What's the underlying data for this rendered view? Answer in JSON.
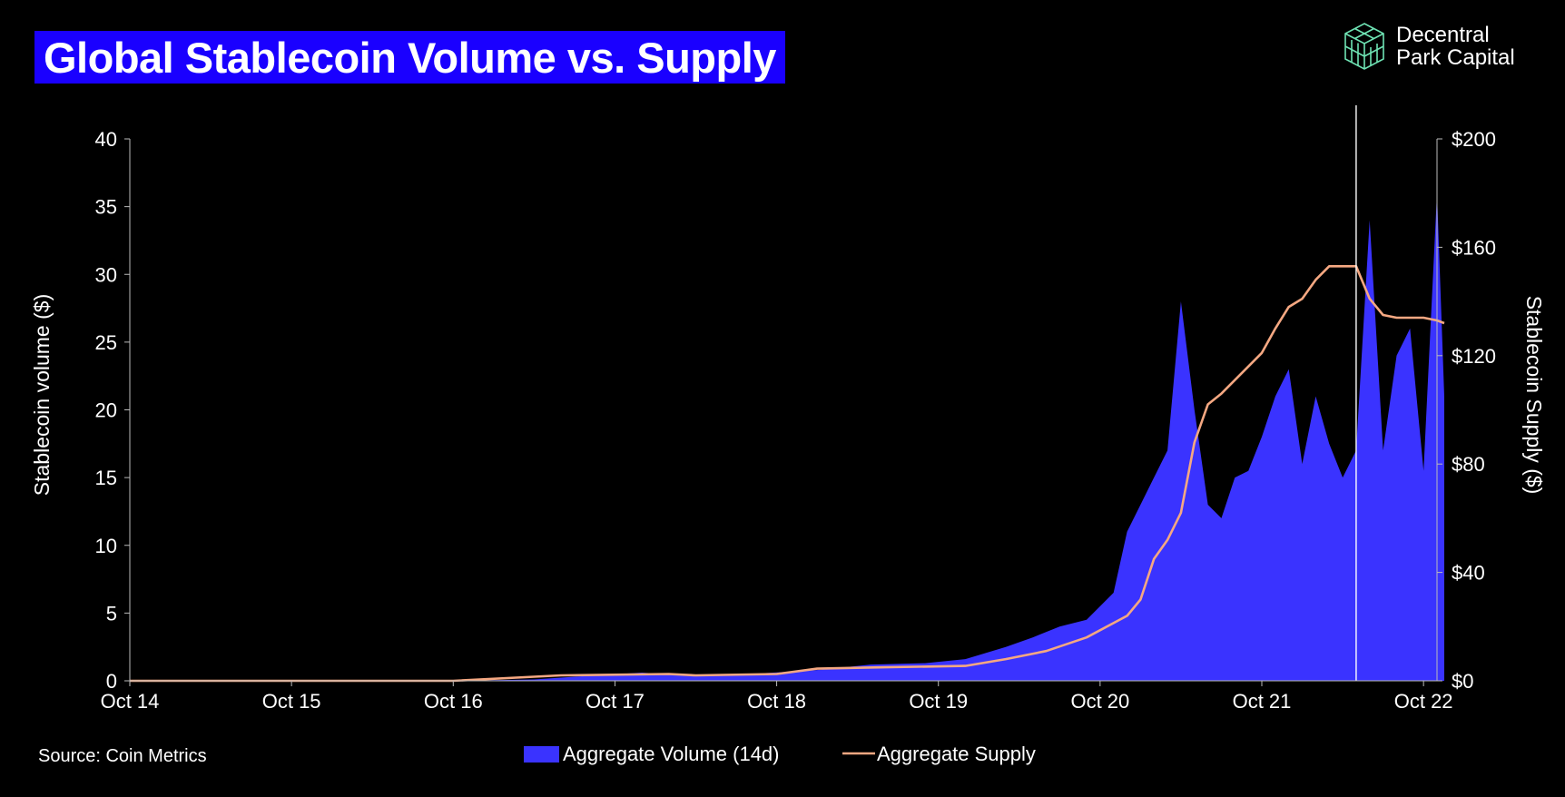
{
  "title": "Global Stablecoin Volume vs. Supply",
  "logo": {
    "icon": "cube-icon",
    "line1": "Decentral",
    "line2": "Park Capital",
    "color": "#6fe3b4"
  },
  "source": "Source: Coin Metrics",
  "chart_data": {
    "type": "area",
    "xlabel": "",
    "ylabel": "Stablecoin volume ($)",
    "y2label": "Stablecoin Supply ($)",
    "x_range": [
      "2014-10",
      "2022-11"
    ],
    "ylim": [
      0,
      40
    ],
    "y2lim": [
      0,
      200
    ],
    "yticks": [
      "0",
      "5",
      "10",
      "15",
      "20",
      "25",
      "30",
      "35",
      "40"
    ],
    "y2ticks": [
      "$0",
      "$40",
      "$80",
      "$120",
      "$160",
      "$200"
    ],
    "xticks": [
      "Oct 14",
      "Oct 15",
      "Oct 16",
      "Oct 17",
      "Oct 18",
      "Oct 19",
      "Oct 20",
      "Oct 21",
      "Oct 22"
    ],
    "grid": false,
    "legend_position": "bottom",
    "marker_line_date": "2022-05",
    "series": [
      {
        "name": "Aggregate Volume (14d)",
        "kind": "area",
        "axis": "left",
        "color": "#3a33ff",
        "points": [
          [
            "2014-10",
            0.0
          ],
          [
            "2015-10",
            0.0
          ],
          [
            "2016-10",
            0.0
          ],
          [
            "2017-04",
            0.1
          ],
          [
            "2017-07",
            0.3
          ],
          [
            "2017-12",
            0.6
          ],
          [
            "2018-03",
            0.4
          ],
          [
            "2018-08",
            0.5
          ],
          [
            "2019-01",
            0.8
          ],
          [
            "2019-05",
            1.2
          ],
          [
            "2019-09",
            1.3
          ],
          [
            "2019-12",
            1.6
          ],
          [
            "2020-03",
            2.5
          ],
          [
            "2020-05",
            3.2
          ],
          [
            "2020-07",
            4.0
          ],
          [
            "2020-09",
            4.5
          ],
          [
            "2020-11",
            6.5
          ],
          [
            "2020-12",
            11.0
          ],
          [
            "2021-01",
            13.0
          ],
          [
            "2021-02",
            15.0
          ],
          [
            "2021-03",
            17.0
          ],
          [
            "2021-04",
            28.0
          ],
          [
            "2021-05",
            20.0
          ],
          [
            "2021-06",
            13.0
          ],
          [
            "2021-07",
            12.0
          ],
          [
            "2021-08",
            15.0
          ],
          [
            "2021-09",
            15.5
          ],
          [
            "2021-10",
            18.0
          ],
          [
            "2021-11",
            21.0
          ],
          [
            "2021-12",
            23.0
          ],
          [
            "2022-01",
            16.0
          ],
          [
            "2022-02",
            21.0
          ],
          [
            "2022-03",
            17.5
          ],
          [
            "2022-04",
            15.0
          ],
          [
            "2022-05",
            17.0
          ],
          [
            "2022-06",
            34.0
          ],
          [
            "2022-07",
            17.0
          ],
          [
            "2022-08",
            24.0
          ],
          [
            "2022-09",
            26.0
          ],
          [
            "2022-10",
            15.5
          ],
          [
            "2022-11",
            36.0
          ],
          [
            "2022-12",
            21.0
          ]
        ]
      },
      {
        "name": "Aggregate Supply",
        "kind": "line",
        "axis": "right",
        "color": "#f5a882",
        "points": [
          [
            "2014-10",
            0
          ],
          [
            "2016-10",
            0
          ],
          [
            "2017-04",
            1.5
          ],
          [
            "2017-06",
            2
          ],
          [
            "2018-02",
            2.5
          ],
          [
            "2018-04",
            2.0
          ],
          [
            "2018-10",
            2.5
          ],
          [
            "2019-01",
            4.5
          ],
          [
            "2019-06",
            5
          ],
          [
            "2019-12",
            5.5
          ],
          [
            "2020-03",
            8
          ],
          [
            "2020-06",
            11
          ],
          [
            "2020-09",
            16
          ],
          [
            "2020-12",
            24
          ],
          [
            "2021-01",
            30
          ],
          [
            "2021-02",
            45
          ],
          [
            "2021-03",
            52
          ],
          [
            "2021-04",
            62
          ],
          [
            "2021-05",
            88
          ],
          [
            "2021-06",
            102
          ],
          [
            "2021-07",
            106
          ],
          [
            "2021-08",
            111
          ],
          [
            "2021-10",
            121
          ],
          [
            "2021-11",
            130
          ],
          [
            "2021-12",
            138
          ],
          [
            "2022-01",
            141
          ],
          [
            "2022-02",
            148
          ],
          [
            "2022-03",
            153
          ],
          [
            "2022-04",
            153
          ],
          [
            "2022-05",
            153
          ],
          [
            "2022-06",
            141
          ],
          [
            "2022-07",
            135
          ],
          [
            "2022-08",
            134
          ],
          [
            "2022-10",
            134
          ],
          [
            "2022-11",
            133
          ],
          [
            "2022-12",
            132
          ]
        ]
      }
    ]
  }
}
